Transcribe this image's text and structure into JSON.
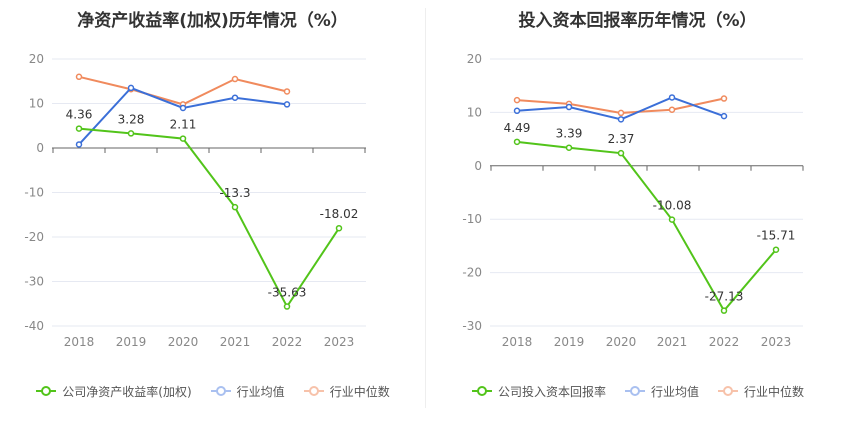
{
  "charts": [
    {
      "title": "净资产收益率(加权)历年情况（%）",
      "legend": [
        {
          "label": "公司净资产收益率(加权)",
          "color": "#52c41a",
          "active": true
        },
        {
          "label": "行业均值",
          "color": "#3b6fd8",
          "active": false
        },
        {
          "label": "行业中位数",
          "color": "#f08a5d",
          "active": false
        }
      ]
    },
    {
      "title": "投入资本回报率历年情况（%）",
      "legend": [
        {
          "label": "公司投入资本回报率",
          "color": "#52c41a",
          "active": true
        },
        {
          "label": "行业均值",
          "color": "#3b6fd8",
          "active": false
        },
        {
          "label": "行业中位数",
          "color": "#f08a5d",
          "active": false
        }
      ]
    }
  ],
  "chart_data": [
    {
      "type": "line",
      "title": "净资产收益率(加权)历年情况（%）",
      "x": [
        "2018",
        "2019",
        "2020",
        "2021",
        "2022",
        "2023"
      ],
      "ylim": [
        -40,
        20
      ],
      "yticks": [
        20,
        10,
        0,
        -10,
        -20,
        -30,
        -40
      ],
      "grid": true,
      "legend_position": "bottom",
      "series": [
        {
          "name": "公司净资产收益率(加权)",
          "color": "#52c41a",
          "values": [
            4.36,
            3.28,
            2.11,
            -13.3,
            -35.63,
            -18.02
          ],
          "labels": [
            "4.36",
            "3.28",
            "2.11",
            "-13.3",
            "-35.63",
            "-18.02"
          ]
        },
        {
          "name": "行业均值",
          "color": "#3b6fd8",
          "values": [
            0.8,
            13.5,
            9.0,
            11.3,
            9.8,
            null
          ]
        },
        {
          "name": "行业中位数",
          "color": "#f08a5d",
          "values": [
            16.0,
            13.2,
            9.8,
            15.5,
            12.7,
            null
          ]
        }
      ]
    },
    {
      "type": "line",
      "title": "投入资本回报率历年情况（%）",
      "x": [
        "2018",
        "2019",
        "2020",
        "2021",
        "2022",
        "2023"
      ],
      "ylim": [
        -30,
        20
      ],
      "yticks": [
        20,
        10,
        0,
        -10,
        -20,
        -30
      ],
      "grid": true,
      "legend_position": "bottom",
      "series": [
        {
          "name": "公司投入资本回报率",
          "color": "#52c41a",
          "values": [
            4.49,
            3.39,
            2.37,
            -10.08,
            -27.13,
            -15.71
          ],
          "labels": [
            "4.49",
            "3.39",
            "2.37",
            "-10.08",
            "-27.13",
            "-15.71"
          ]
        },
        {
          "name": "行业均值",
          "color": "#3b6fd8",
          "values": [
            10.3,
            11.0,
            8.7,
            12.8,
            9.3,
            null
          ]
        },
        {
          "name": "行业中位数",
          "color": "#f08a5d",
          "values": [
            12.3,
            11.6,
            9.9,
            10.5,
            12.6,
            null
          ]
        }
      ]
    }
  ]
}
